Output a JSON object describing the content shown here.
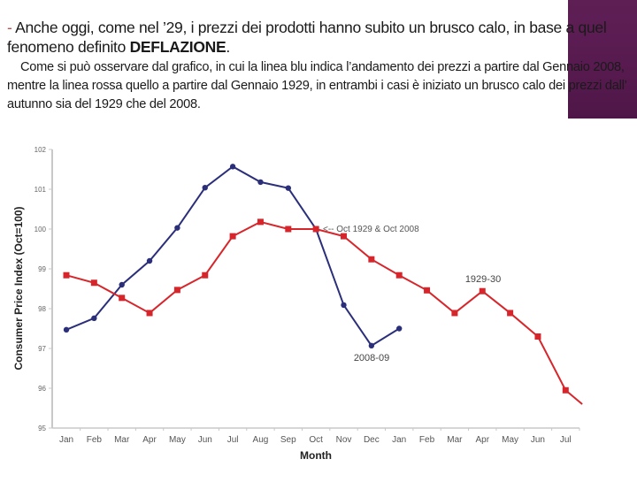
{
  "slide": {
    "paragraph1": {
      "dash": "-",
      "text_before": " Anche oggi, come nel ’29, i prezzi dei prodotti hanno subito un brusco calo, in base a quel fenomeno definito ",
      "bold": "DEFLAZIONE",
      "text_after": "."
    },
    "paragraph2": "Come si può osservare dal grafico, in cui la linea blu indica l’andamento dei prezzi a partire dal Gennaio 2008,  mentre la linea rossa quello a partire dal Gennaio 1929,  in entrambi i casi è iniziato un brusco calo dei prezzi dall’ autunno sia del 1929 che del 2008."
  },
  "colors": {
    "series_2008": "#2b2f7a",
    "series_1929": "#d7262b",
    "axis": "#c8c8c8",
    "accent_panel": "#5a1c51"
  },
  "chart_data": {
    "type": "line",
    "title": "",
    "xlabel": "Month",
    "ylabel": "Consumer Price Index (Oct=100)",
    "ylim": [
      95,
      102
    ],
    "yticks": [
      95,
      96,
      97,
      98,
      99,
      100,
      101,
      102
    ],
    "grid": false,
    "categories": [
      "Jan",
      "Feb",
      "Mar",
      "Apr",
      "May",
      "Jun",
      "Jul",
      "Aug",
      "Sep",
      "Oct",
      "Nov",
      "Dec",
      "Jan",
      "Feb",
      "Mar",
      "Apr",
      "May",
      "Jun",
      "Jul"
    ],
    "series": [
      {
        "name": "2008-09",
        "color": "#2b2f7a",
        "marker": "circle",
        "values": [
          97.47,
          97.76,
          98.6,
          99.2,
          100.03,
          101.04,
          101.57,
          101.18,
          101.03,
          100.0,
          98.09,
          97.07,
          97.5,
          null,
          null,
          null,
          null,
          null,
          null
        ]
      },
      {
        "name": "1929-30",
        "color": "#d7262b",
        "marker": "square",
        "values": [
          98.84,
          98.65,
          98.27,
          97.89,
          98.47,
          98.84,
          99.82,
          100.18,
          100.0,
          100.0,
          99.82,
          99.24,
          98.84,
          98.46,
          97.89,
          98.44,
          97.89,
          97.3,
          95.95
        ],
        "trailing_value": 95.6
      }
    ],
    "annotations": [
      {
        "text": "<-- Oct 1929 & Oct 2008",
        "x": "Oct",
        "y": 100.0
      },
      {
        "text": "2008-09",
        "x": "Dec",
        "y": 96.7
      },
      {
        "text": "1929-30",
        "x": "Apr",
        "y": 98.7
      }
    ],
    "legend": "none"
  }
}
